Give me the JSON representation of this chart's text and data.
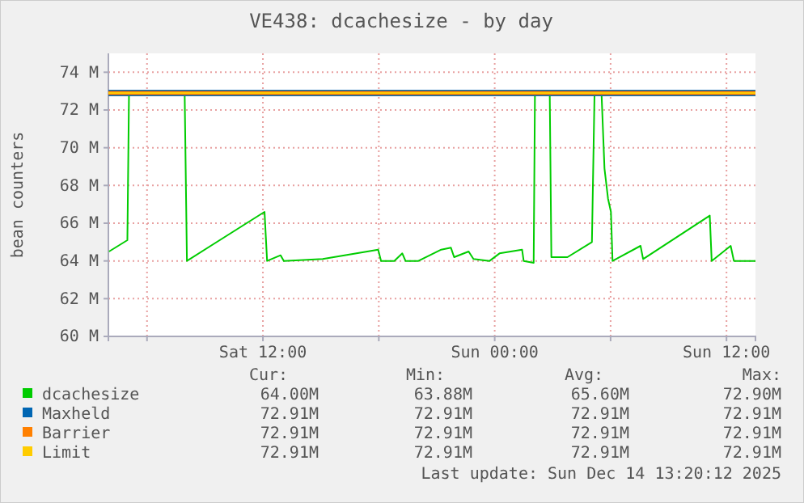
{
  "chart_data": {
    "type": "line",
    "title": "VE438: dcachesize - by day",
    "ylabel": "bean counters",
    "xlim": [
      "2025-12-13T04:00",
      "2025-12-14T13:30"
    ],
    "ylim": [
      60,
      75
    ],
    "xticks": [
      {
        "value": "2025-12-13T06:00",
        "label": null
      },
      {
        "value": "2025-12-13T12:00",
        "label": "Sat 12:00"
      },
      {
        "value": "2025-12-13T18:00",
        "label": null
      },
      {
        "value": "2025-12-14T00:00",
        "label": "Sun 00:00"
      },
      {
        "value": "2025-12-14T06:00",
        "label": null
      },
      {
        "value": "2025-12-14T12:00",
        "label": "Sun 12:00"
      }
    ],
    "yticks": [
      {
        "value": 60,
        "label": "60 M"
      },
      {
        "value": 62,
        "label": "62 M"
      },
      {
        "value": 64,
        "label": "64 M"
      },
      {
        "value": 66,
        "label": "66 M"
      },
      {
        "value": 68,
        "label": "68 M"
      },
      {
        "value": 70,
        "label": "70 M"
      },
      {
        "value": 72,
        "label": "72 M"
      },
      {
        "value": 74,
        "label": "74 M"
      }
    ],
    "grid": true,
    "legend": "bottom",
    "marker": "none",
    "line_style": "solid",
    "series": [
      {
        "name": "dcachesize",
        "color": "#00cc00",
        "x": [
          "2025-12-13T04:02",
          "2025-12-13T04:59",
          "2025-12-13T05:04",
          "2025-12-13T07:57",
          "2025-12-13T08:04",
          "2025-12-13T12:05",
          "2025-12-13T12:13",
          "2025-12-13T12:55",
          "2025-12-13T13:05",
          "2025-12-13T15:06",
          "2025-12-13T17:58",
          "2025-12-13T18:07",
          "2025-12-13T18:48",
          "2025-12-13T19:13",
          "2025-12-13T19:23",
          "2025-12-13T20:03",
          "2025-12-13T21:14",
          "2025-12-13T21:44",
          "2025-12-13T21:54",
          "2025-12-13T22:39",
          "2025-12-13T22:54",
          "2025-12-13T23:44",
          "2025-12-14T00:15",
          "2025-12-14T01:25",
          "2025-12-14T01:30",
          "2025-12-14T02:01",
          "2025-12-14T02:05",
          "2025-12-14T02:51",
          "2025-12-14T02:56",
          "2025-12-14T03:46",
          "2025-12-14T05:02",
          "2025-12-14T05:10",
          "2025-12-14T05:32",
          "2025-12-14T05:41",
          "2025-12-14T05:52",
          "2025-12-14T06:01",
          "2025-12-14T06:06",
          "2025-12-14T07:33",
          "2025-12-14T07:41",
          "2025-12-14T11:08",
          "2025-12-14T11:14",
          "2025-12-14T12:13",
          "2025-12-14T12:23",
          "2025-12-14T13:30"
        ],
        "values": [
          64.5,
          65.1,
          72.8,
          72.8,
          64.0,
          66.6,
          64.0,
          64.3,
          64.0,
          64.1,
          64.6,
          64.0,
          64.0,
          64.4,
          64.0,
          64.0,
          64.6,
          64.7,
          64.2,
          64.5,
          64.1,
          64.0,
          64.4,
          64.6,
          64.0,
          63.9,
          72.8,
          72.8,
          64.2,
          64.2,
          65.0,
          72.8,
          72.8,
          68.9,
          67.3,
          66.6,
          64.0,
          64.8,
          64.1,
          66.4,
          64.0,
          64.8,
          64.0,
          64.0
        ]
      },
      {
        "name": "Maxheld",
        "color": "#0066b3",
        "x": [
          "2025-12-13T04:00",
          "2025-12-14T13:30"
        ],
        "values": [
          72.9,
          72.9
        ]
      },
      {
        "name": "Barrier",
        "color": "#ff8000",
        "x": [
          "2025-12-13T04:00",
          "2025-12-14T13:30"
        ],
        "values": [
          72.9,
          72.9
        ]
      },
      {
        "name": "Limit",
        "color": "#ffcc00",
        "x": [
          "2025-12-13T04:00",
          "2025-12-14T13:30"
        ],
        "values": [
          72.9,
          72.9
        ]
      }
    ],
    "annotations": [
      "Cur:",
      "Min:",
      "Avg:",
      "Max:",
      "64.00M",
      "63.88M",
      "65.60M",
      "72.90M",
      "72.91M",
      "72.91M",
      "72.91M",
      "72.91M",
      "72.91M",
      "72.91M",
      "72.91M",
      "72.91M",
      "72.91M",
      "72.91M",
      "72.91M",
      "72.91M",
      "Last update: Sun Dec 14 13:20:12 2025"
    ]
  }
}
